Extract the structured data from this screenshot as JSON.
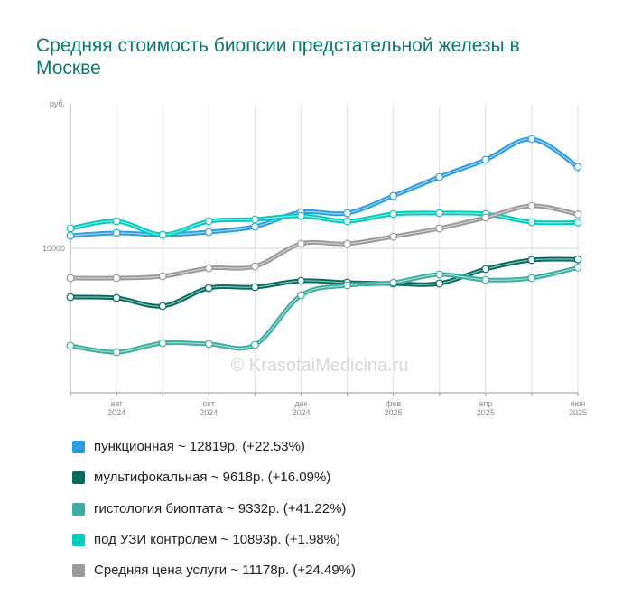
{
  "chart_data": {
    "type": "line",
    "title": "Средняя стоимость биопсии предстательной железы в Москве",
    "y_label": "руб.",
    "watermark": "© KrasotaiMedicina.ru",
    "categories": [
      null,
      "авг\n2024",
      null,
      "окт\n2024",
      null,
      "дек\n2024",
      null,
      "фев\n2025",
      null,
      "апр\n2025",
      null,
      "июн\n2025"
    ],
    "ylim": [
      5000,
      15000
    ],
    "yticks": [
      10000
    ],
    "grid": true,
    "series": [
      {
        "name": "пункционная ~ 12819р. (+22.53%)",
        "color": "#2a9de0",
        "values": [
          10437,
          10531,
          10469,
          10563,
          10750,
          11250,
          11219,
          11813,
          12469,
          13063,
          13781,
          12819
        ]
      },
      {
        "name": "мультифокальная ~ 9618р. (+16.09%)",
        "color": "#006b5e",
        "values": [
          8313,
          8281,
          8000,
          8625,
          8656,
          8875,
          8813,
          8781,
          8781,
          9281,
          9594,
          9618
        ]
      },
      {
        "name": "гистология биоптата ~ 9332р. (+41.22%)",
        "color": "#3aaea0",
        "values": [
          6625,
          6406,
          6719,
          6688,
          6656,
          8375,
          8719,
          8813,
          9094,
          8906,
          8969,
          9332
        ]
      },
      {
        "name": "под УЗИ контролем ~ 10893р. (+1.98%)",
        "color": "#00cbbd",
        "values": [
          10688,
          10938,
          10469,
          10938,
          11000,
          11125,
          10938,
          11188,
          11219,
          11188,
          10906,
          10893
        ]
      },
      {
        "name": "Средняя цена услуги ~ 11178р. (+24.49%)",
        "color": "#9a9a9a",
        "values": [
          8969,
          8969,
          9031,
          9313,
          9375,
          10156,
          10156,
          10406,
          10688,
          11063,
          11469,
          11178
        ]
      }
    ]
  }
}
